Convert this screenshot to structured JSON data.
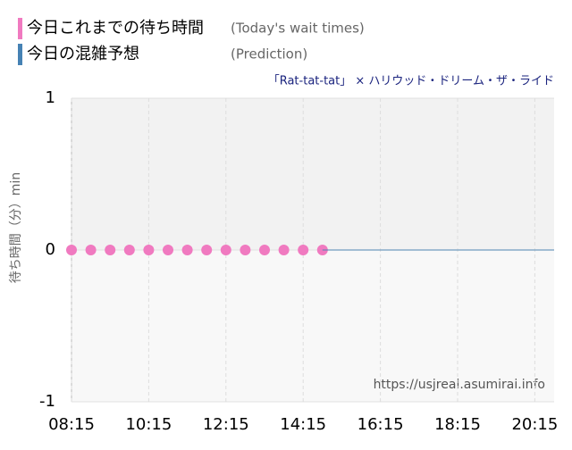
{
  "chart_data": {
    "type": "scatter",
    "subtitle": "「Rat-tat-tat」 × ハリウッド・ドリーム・ザ・ライド",
    "y_label": "待ち時間（分）min",
    "watermark": "https://usjreal.asumirai.info",
    "series": [
      {
        "name": "今日これまでの待ち時間",
        "note": "(Today's wait times)",
        "color": "#f07ac0",
        "style": "points",
        "x": [
          "08:15",
          "08:45",
          "09:15",
          "09:45",
          "10:15",
          "10:45",
          "11:15",
          "11:45",
          "12:15",
          "12:45",
          "13:15",
          "13:45",
          "14:15",
          "14:45"
        ],
        "values": [
          0,
          0,
          0,
          0,
          0,
          0,
          0,
          0,
          0,
          0,
          0,
          0,
          0,
          0
        ]
      },
      {
        "name": "今日の混雑予想",
        "note": "(Prediction)",
        "color": "#4682b4",
        "style": "line",
        "x": [
          "14:45",
          "20:45"
        ],
        "values": [
          0,
          0
        ]
      }
    ],
    "xlim": [
      "08:15",
      "20:45"
    ],
    "xticks": [
      "08:15",
      "10:15",
      "12:15",
      "14:15",
      "16:15",
      "18:15",
      "20:15"
    ],
    "ylim": [
      -1,
      1
    ],
    "yticks": [
      -1,
      0,
      1
    ],
    "grid": true
  }
}
